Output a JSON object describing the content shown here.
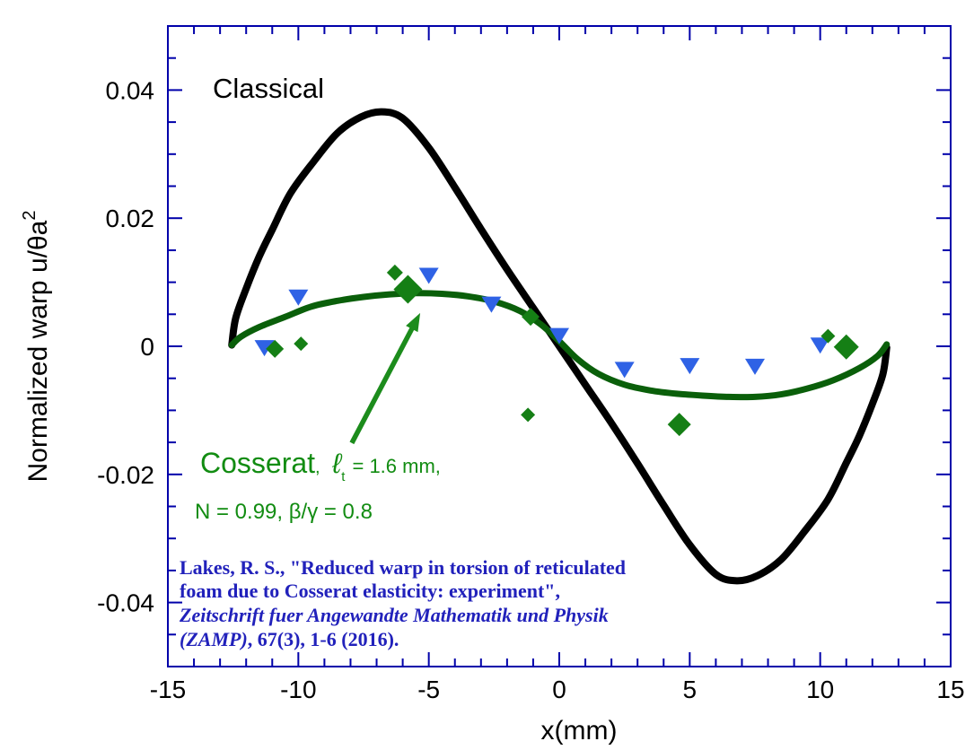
{
  "chart_data": {
    "type": "line+scatter",
    "title": "",
    "xlabel": "x(mm)",
    "ylabel": "Normalized warp u/θa",
    "ylabel_superscript": "2",
    "xlim": [
      -15,
      15
    ],
    "ylim": [
      -0.05,
      0.05
    ],
    "grid": false,
    "legend": "none (labels drawn as in-plot annotations)",
    "axis_color": "#0000aa",
    "x_ticks": [
      -15,
      -10,
      -5,
      0,
      5,
      10,
      15
    ],
    "x_tick_labels": [
      "-15",
      "-10",
      "-5",
      "0",
      "5",
      "10",
      "15"
    ],
    "x_minor_step": 1,
    "y_ticks": [
      0.04,
      0.02,
      0,
      -0.02,
      -0.04
    ],
    "y_tick_labels": [
      "0.04",
      "0.02",
      "0",
      "-0.02",
      "-0.04"
    ],
    "y_minor_step": 0.005,
    "series": [
      {
        "name": "Classical",
        "type": "line",
        "color": "#000000",
        "stroke_width": 8,
        "points": [
          [
            -12.55,
            0.0002
          ],
          [
            -12.4,
            0.0044
          ],
          [
            -12.0,
            0.009
          ],
          [
            -11.5,
            0.014
          ],
          [
            -11.0,
            0.0182
          ],
          [
            -10.3,
            0.0239
          ],
          [
            -9.4,
            0.0289
          ],
          [
            -8.5,
            0.0333
          ],
          [
            -7.6,
            0.0358
          ],
          [
            -6.8,
            0.0366
          ],
          [
            -6.0,
            0.0356
          ],
          [
            -5.0,
            0.031
          ],
          [
            -4.0,
            0.0248
          ],
          [
            -3.0,
            0.0183
          ],
          [
            -2.0,
            0.012
          ],
          [
            -1.0,
            0.006
          ],
          [
            0,
            0.0
          ],
          [
            1.0,
            -0.006
          ],
          [
            2.0,
            -0.012
          ],
          [
            3.0,
            -0.0183
          ],
          [
            4.0,
            -0.0248
          ],
          [
            5.0,
            -0.031
          ],
          [
            6.0,
            -0.0356
          ],
          [
            6.8,
            -0.0366
          ],
          [
            7.6,
            -0.0358
          ],
          [
            8.5,
            -0.0333
          ],
          [
            9.4,
            -0.0289
          ],
          [
            10.3,
            -0.0239
          ],
          [
            11.0,
            -0.0182
          ],
          [
            11.5,
            -0.014
          ],
          [
            12.0,
            -0.009
          ],
          [
            12.4,
            -0.0044
          ],
          [
            12.55,
            -0.0002
          ]
        ]
      },
      {
        "name": "Cosserat, lt = 1.6 mm, N = 0.99, beta/gamma = 0.8",
        "type": "line",
        "color": "#0a5f0a",
        "stroke_width": 7,
        "points": [
          [
            -12.55,
            0.0002
          ],
          [
            -12.2,
            0.0015
          ],
          [
            -11.5,
            0.003
          ],
          [
            -10.5,
            0.0046
          ],
          [
            -9.5,
            0.0062
          ],
          [
            -8.5,
            0.0071
          ],
          [
            -7.5,
            0.0077
          ],
          [
            -6.5,
            0.0081
          ],
          [
            -5.5,
            0.0083
          ],
          [
            -4.5,
            0.0082
          ],
          [
            -3.5,
            0.0078
          ],
          [
            -2.5,
            0.007
          ],
          [
            -1.5,
            0.0055
          ],
          [
            -0.7,
            0.0034
          ],
          [
            0,
            0.0008
          ],
          [
            0.7,
            -0.002
          ],
          [
            1.5,
            -0.0043
          ],
          [
            2.5,
            -0.006
          ],
          [
            3.5,
            -0.0069
          ],
          [
            4.5,
            -0.0074
          ],
          [
            5.5,
            -0.0077
          ],
          [
            6.5,
            -0.0079
          ],
          [
            7.5,
            -0.0079
          ],
          [
            8.5,
            -0.0075
          ],
          [
            9.5,
            -0.0066
          ],
          [
            10.5,
            -0.0053
          ],
          [
            11.5,
            -0.0034
          ],
          [
            12.2,
            -0.0015
          ],
          [
            12.55,
            0.0003
          ]
        ]
      },
      {
        "name": "experiment (blue triangles)",
        "type": "scatter",
        "marker": "triangle-down",
        "color": "#2f62e5",
        "points": [
          [
            -11.3,
            -0.0003
          ],
          [
            -10.0,
            0.0076
          ],
          [
            -5.0,
            0.011
          ],
          [
            -2.6,
            0.0065
          ],
          [
            0.0,
            0.0016
          ],
          [
            2.5,
            -0.0037
          ],
          [
            5.0,
            -0.0031
          ],
          [
            7.5,
            -0.0032
          ],
          [
            10.0,
            0.0001
          ]
        ]
      },
      {
        "name": "experiment (green diamonds)",
        "type": "scatter",
        "marker": "diamond",
        "color": "#157f15",
        "points_format": "[x, y, half_size_px]",
        "points": [
          [
            -10.9,
            -0.0004,
            10
          ],
          [
            -9.9,
            0.0004,
            8
          ],
          [
            -6.3,
            0.0115,
            9
          ],
          [
            -5.8,
            0.0089,
            16
          ],
          [
            -1.1,
            0.0046,
            10
          ],
          [
            -1.2,
            -0.0107,
            8
          ],
          [
            4.6,
            -0.0122,
            13
          ],
          [
            10.3,
            0.0016,
            8
          ],
          [
            11.0,
            -0.0001,
            14
          ]
        ]
      }
    ],
    "arrow": {
      "color": "#1c8c1c",
      "from": [
        -7.95,
        -0.0151
      ],
      "to": [
        -5.33,
        0.0052
      ]
    }
  },
  "annotations": {
    "classical": "Classical",
    "cosserat_name": "Cosserat",
    "cosserat_comma": ", ",
    "cosserat_ell": "ℓ",
    "cosserat_sub": "t",
    "cosserat_rest": " = 1.6 mm,",
    "params": "N = 0.99, β/γ = 0.8",
    "citation": {
      "line1": "Lakes, R. S., \"Reduced warp in torsion of reticulated",
      "line2": "foam due to Cosserat elasticity: experiment\",",
      "line3": "Zeitschrift fuer Angewandte Mathematik und Physik",
      "line4_journal": "(ZAMP)",
      "line4_rest": ", 67(3), 1-6 (2016)."
    }
  }
}
